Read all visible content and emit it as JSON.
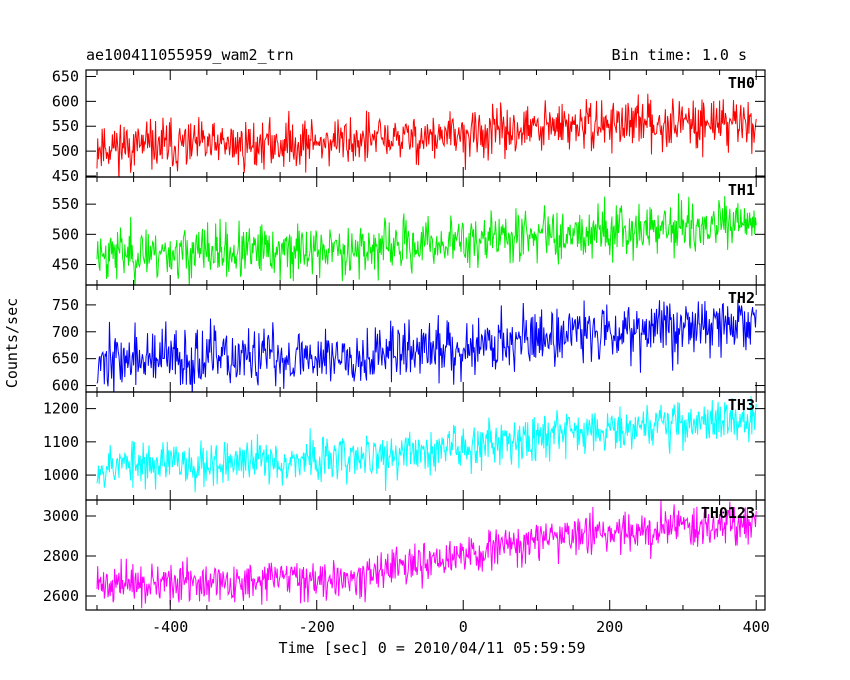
{
  "chart_data": {
    "type": "line",
    "title_left": "ae100411055959_wam2_trn",
    "title_right": "Bin time: 1.0 s",
    "xlabel": "Time [sec] 0 = 2010/04/11 05:59:59",
    "ylabel": "Counts/sec",
    "xlim": [
      -515,
      412
    ],
    "x_ticks": [
      -400,
      -200,
      0,
      200,
      400
    ],
    "bin_time_s": 1.0,
    "x_start": -500,
    "x_end": 400,
    "panels": [
      {
        "name": "TH0",
        "color": "#ff0000",
        "ylim": [
          448,
          663
        ],
        "y_ticks": [
          450,
          500,
          550,
          600,
          650
        ],
        "trend": [
          [
            -500,
            510
          ],
          [
            -300,
            512
          ],
          [
            -100,
            525
          ],
          [
            0,
            530
          ],
          [
            100,
            545
          ],
          [
            200,
            555
          ],
          [
            400,
            560
          ]
        ],
        "noise": 25,
        "seed": 11
      },
      {
        "name": "TH1",
        "color": "#00ee00",
        "ylim": [
          416,
          595
        ],
        "y_ticks": [
          450,
          500,
          550
        ],
        "trend": [
          [
            -500,
            470
          ],
          [
            -300,
            470
          ],
          [
            -100,
            478
          ],
          [
            0,
            490
          ],
          [
            100,
            500
          ],
          [
            200,
            508
          ],
          [
            400,
            515
          ]
        ],
        "noise": 22,
        "seed": 23
      },
      {
        "name": "TH2",
        "color": "#0000ff",
        "ylim": [
          588,
          787
        ],
        "y_ticks": [
          600,
          650,
          700,
          750
        ],
        "trend": [
          [
            -500,
            648
          ],
          [
            -300,
            650
          ],
          [
            -100,
            660
          ],
          [
            0,
            672
          ],
          [
            100,
            690
          ],
          [
            200,
            705
          ],
          [
            400,
            715
          ]
        ],
        "noise": 28,
        "seed": 37
      },
      {
        "name": "TH3",
        "color": "#00ffff",
        "ylim": [
          925,
          1250
        ],
        "y_ticks": [
          1000,
          1100,
          1200
        ],
        "trend": [
          [
            -500,
            1030
          ],
          [
            -300,
            1040
          ],
          [
            -100,
            1055
          ],
          [
            0,
            1090
          ],
          [
            100,
            1120
          ],
          [
            200,
            1145
          ],
          [
            400,
            1170
          ]
        ],
        "noise": 35,
        "seed": 53
      },
      {
        "name": "TH0123",
        "color": "#ff00ff",
        "ylim": [
          2530,
          3080
        ],
        "y_ticks": [
          2600,
          2800,
          3000
        ],
        "trend": [
          [
            -500,
            2660
          ],
          [
            -300,
            2665
          ],
          [
            -100,
            2720
          ],
          [
            0,
            2800
          ],
          [
            100,
            2880
          ],
          [
            200,
            2920
          ],
          [
            400,
            2975
          ]
        ],
        "noise": 50,
        "seed": 71
      }
    ]
  }
}
